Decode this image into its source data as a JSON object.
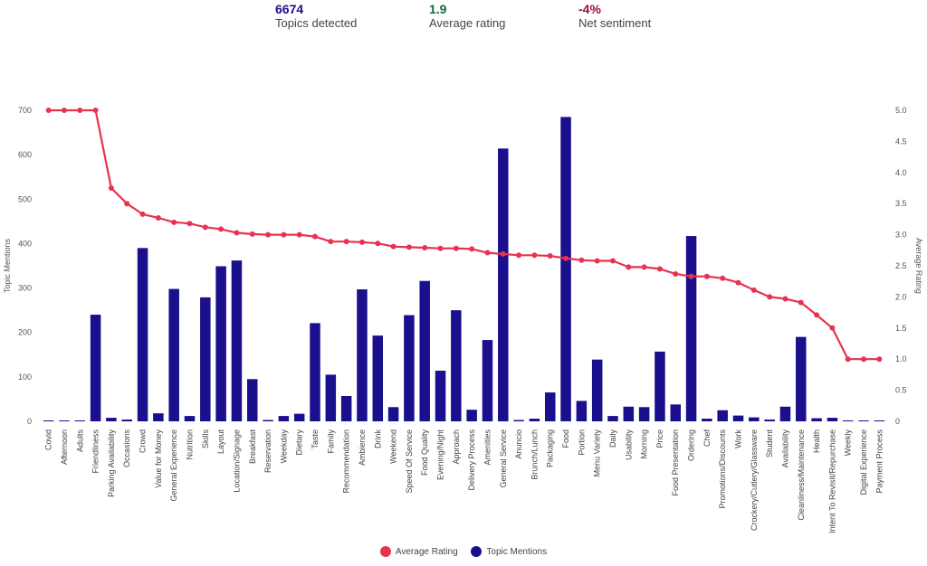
{
  "kpis": [
    {
      "value": "6674",
      "label": "Topics detected",
      "color": "#1a0f8c"
    },
    {
      "value": "1.9",
      "label": "Average rating",
      "color": "#0f6b3a"
    },
    {
      "value": "-4%",
      "label": "Net sentiment",
      "color": "#9a1232"
    }
  ],
  "chart_data": {
    "type": "bar",
    "categories": [
      "Covid",
      "Afternoon",
      "Adults",
      "Friendliness",
      "Parking Availability",
      "Occasions",
      "Crowd",
      "Value for Money",
      "General Experience",
      "Nutrition",
      "Skills",
      "Layout",
      "Location/Signage",
      "Breakfast",
      "Reservation",
      "Weekday",
      "Dietary",
      "Taste",
      "Family",
      "Recommendation",
      "Ambience",
      "Drink",
      "Weekend",
      "Speed Of Service",
      "Food Quality",
      "Evening/Night",
      "Approach",
      "Delivery Process",
      "Amenities",
      "General Service",
      "Anuncio",
      "Brunch/Lunch",
      "Packaging",
      "Food",
      "Portion",
      "Menu Variety",
      "Daily",
      "Usability",
      "Morning",
      "Price",
      "Food Presentation",
      "Ordering",
      "Chef",
      "Promotions/Discounts",
      "Work",
      "Crockery/Cutlery/Glassware",
      "Student",
      "Availability",
      "Cleanliness/Maintenance",
      "Health",
      "Intent To Revisit/Repurchase",
      "Weekly",
      "Digital Experience",
      "Payment Process"
    ],
    "series": [
      {
        "name": "Topic Mentions",
        "type": "bar",
        "axis": "left",
        "color": "#1a0f8c",
        "values": [
          1,
          1,
          1,
          240,
          8,
          4,
          390,
          18,
          298,
          12,
          279,
          349,
          362,
          95,
          3,
          12,
          17,
          221,
          105,
          57,
          297,
          193,
          32,
          239,
          316,
          114,
          250,
          26,
          183,
          614,
          3,
          6,
          65,
          685,
          46,
          139,
          12,
          33,
          32,
          157,
          38,
          417,
          6,
          25,
          13,
          9,
          4,
          33,
          190,
          7,
          8,
          1,
          1,
          2
        ]
      },
      {
        "name": "Average Rating",
        "type": "line",
        "axis": "right",
        "color": "#e8334f",
        "values": [
          5.0,
          5.0,
          5.0,
          5.0,
          3.75,
          3.5,
          3.33,
          3.27,
          3.2,
          3.18,
          3.12,
          3.09,
          3.03,
          3.01,
          3.0,
          3.0,
          3.0,
          2.97,
          2.89,
          2.89,
          2.88,
          2.86,
          2.81,
          2.8,
          2.79,
          2.78,
          2.78,
          2.77,
          2.71,
          2.69,
          2.67,
          2.67,
          2.66,
          2.62,
          2.59,
          2.58,
          2.58,
          2.48,
          2.48,
          2.45,
          2.37,
          2.33,
          2.33,
          2.3,
          2.23,
          2.11,
          2.0,
          1.97,
          1.91,
          1.71,
          1.5,
          1.0,
          1.0,
          1.0
        ]
      }
    ],
    "ylabel": "Topic Mentions",
    "y2label": "Average Rating",
    "ylim": [
      0,
      700
    ],
    "y2lim": [
      0,
      5
    ],
    "yticks": [
      "0",
      "100",
      "200",
      "300",
      "400",
      "500",
      "600",
      "700"
    ],
    "y2ticks": [
      "0",
      "0.5",
      "1.0",
      "1.5",
      "2.0",
      "2.5",
      "3.0",
      "3.5",
      "4.0",
      "4.5",
      "5.0"
    ],
    "legend_position": "bottom-center",
    "grid": false
  }
}
